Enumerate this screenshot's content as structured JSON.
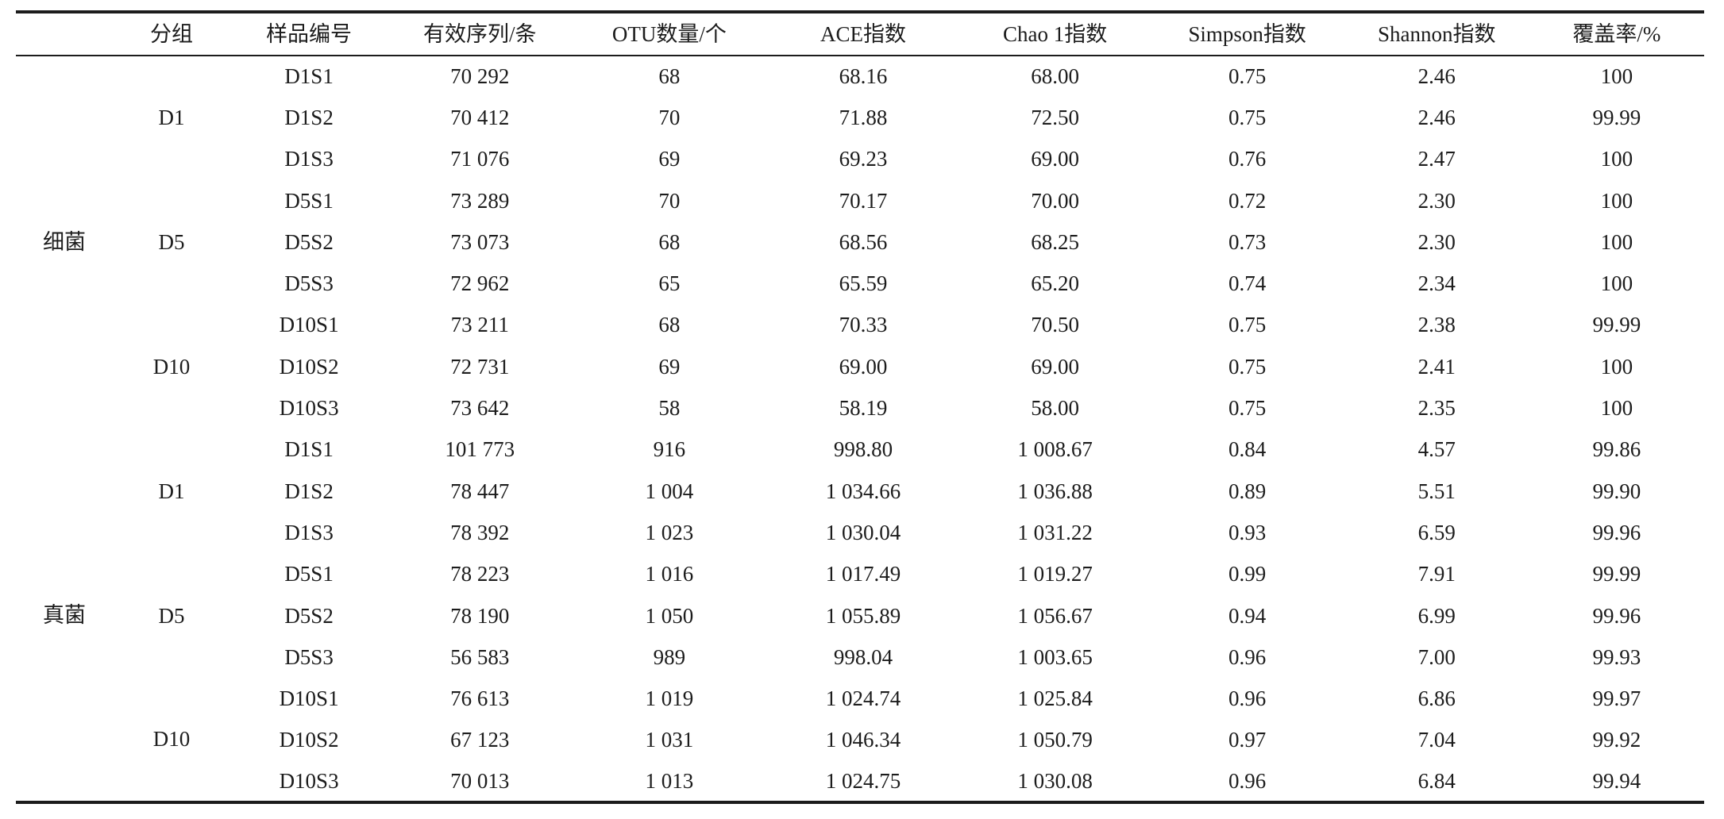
{
  "table": {
    "columns": [
      "",
      "分组",
      "样品编号",
      "有效序列/条",
      "OTU数量/个",
      "ACE指数",
      "Chao 1指数",
      "Simpson指数",
      "Shannon指数",
      "覆盖率/%"
    ],
    "sections": [
      {
        "category": "细菌",
        "groups": [
          {
            "name": "D1",
            "samples": [
              [
                "D1S1",
                "70 292",
                "68",
                "68.16",
                "68.00",
                "0.75",
                "2.46",
                "100"
              ],
              [
                "D1S2",
                "70 412",
                "70",
                "71.88",
                "72.50",
                "0.75",
                "2.46",
                "99.99"
              ],
              [
                "D1S3",
                "71 076",
                "69",
                "69.23",
                "69.00",
                "0.76",
                "2.47",
                "100"
              ]
            ]
          },
          {
            "name": "D5",
            "samples": [
              [
                "D5S1",
                "73 289",
                "70",
                "70.17",
                "70.00",
                "0.72",
                "2.30",
                "100"
              ],
              [
                "D5S2",
                "73 073",
                "68",
                "68.56",
                "68.25",
                "0.73",
                "2.30",
                "100"
              ],
              [
                "D5S3",
                "72 962",
                "65",
                "65.59",
                "65.20",
                "0.74",
                "2.34",
                "100"
              ]
            ]
          },
          {
            "name": "D10",
            "samples": [
              [
                "D10S1",
                "73 211",
                "68",
                "70.33",
                "70.50",
                "0.75",
                "2.38",
                "99.99"
              ],
              [
                "D10S2",
                "72 731",
                "69",
                "69.00",
                "69.00",
                "0.75",
                "2.41",
                "100"
              ],
              [
                "D10S3",
                "73 642",
                "58",
                "58.19",
                "58.00",
                "0.75",
                "2.35",
                "100"
              ]
            ]
          }
        ]
      },
      {
        "category": "真菌",
        "groups": [
          {
            "name": "D1",
            "samples": [
              [
                "D1S1",
                "101 773",
                "916",
                "998.80",
                "1 008.67",
                "0.84",
                "4.57",
                "99.86"
              ],
              [
                "D1S2",
                "78 447",
                "1 004",
                "1 034.66",
                "1 036.88",
                "0.89",
                "5.51",
                "99.90"
              ],
              [
                "D1S3",
                "78 392",
                "1 023",
                "1 030.04",
                "1 031.22",
                "0.93",
                "6.59",
                "99.96"
              ]
            ]
          },
          {
            "name": "D5",
            "samples": [
              [
                "D5S1",
                "78 223",
                "1 016",
                "1 017.49",
                "1 019.27",
                "0.99",
                "7.91",
                "99.99"
              ],
              [
                "D5S2",
                "78 190",
                "1 050",
                "1 055.89",
                "1 056.67",
                "0.94",
                "6.99",
                "99.96"
              ],
              [
                "D5S3",
                "56 583",
                "989",
                "998.04",
                "1 003.65",
                "0.96",
                "7.00",
                "99.93"
              ]
            ]
          },
          {
            "name": "D10",
            "samples": [
              [
                "D10S1",
                "76 613",
                "1 019",
                "1 024.74",
                "1 025.84",
                "0.96",
                "6.86",
                "99.97"
              ],
              [
                "D10S2",
                "67 123",
                "1 031",
                "1 046.34",
                "1 050.79",
                "0.97",
                "7.04",
                "99.92"
              ],
              [
                "D10S3",
                "70 013",
                "1 013",
                "1 024.75",
                "1 030.08",
                "0.96",
                "6.84",
                "99.94"
              ]
            ]
          }
        ]
      }
    ]
  }
}
